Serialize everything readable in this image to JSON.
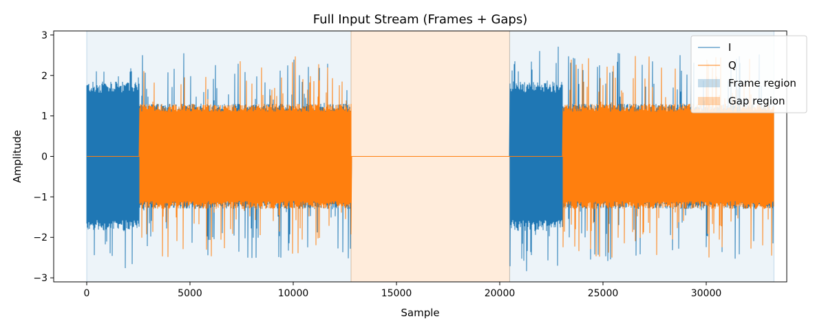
{
  "chart_data": {
    "type": "line",
    "title": "Full Input Stream (Frames + Gaps)",
    "xlabel": "Sample",
    "ylabel": "Amplitude",
    "xlim": [
      -1600,
      33900
    ],
    "ylim": [
      -3.1,
      3.1
    ],
    "x_ticks": [
      0,
      5000,
      10000,
      15000,
      20000,
      25000,
      30000
    ],
    "y_ticks": [
      -3,
      -2,
      -1,
      0,
      1,
      2,
      3
    ],
    "grid": false,
    "legend_position": "top-right",
    "colors": {
      "I": "#1f77b4",
      "Q": "#ff7f0e",
      "frame": "#1f77b4",
      "gap": "#ff7f0e"
    },
    "regions": [
      {
        "kind": "frame",
        "start": 0,
        "end": 12800
      },
      {
        "kind": "gap",
        "start": 12800,
        "end": 20480
      },
      {
        "kind": "frame",
        "start": 20480,
        "end": 33280
      }
    ],
    "segments": [
      {
        "start": 0,
        "end": 2560,
        "i_envelope": 1.85,
        "i_peak": 2.85,
        "q_envelope": 0
      },
      {
        "start": 2560,
        "end": 12800,
        "i_envelope": 1.3,
        "i_peak": 2.6,
        "q_envelope": 1.3,
        "q_peak": 2.5
      },
      {
        "start": 12800,
        "end": 20480,
        "i_envelope": 0,
        "q_envelope": 0
      },
      {
        "start": 20480,
        "end": 23040,
        "i_envelope": 1.85,
        "i_peak": 2.85,
        "q_envelope": 0
      },
      {
        "start": 23040,
        "end": 33280,
        "i_envelope": 1.3,
        "i_peak": 2.6,
        "q_envelope": 1.3,
        "q_peak": 2.5
      }
    ],
    "legend": [
      "I",
      "Q",
      "Frame region",
      "Gap region"
    ]
  }
}
